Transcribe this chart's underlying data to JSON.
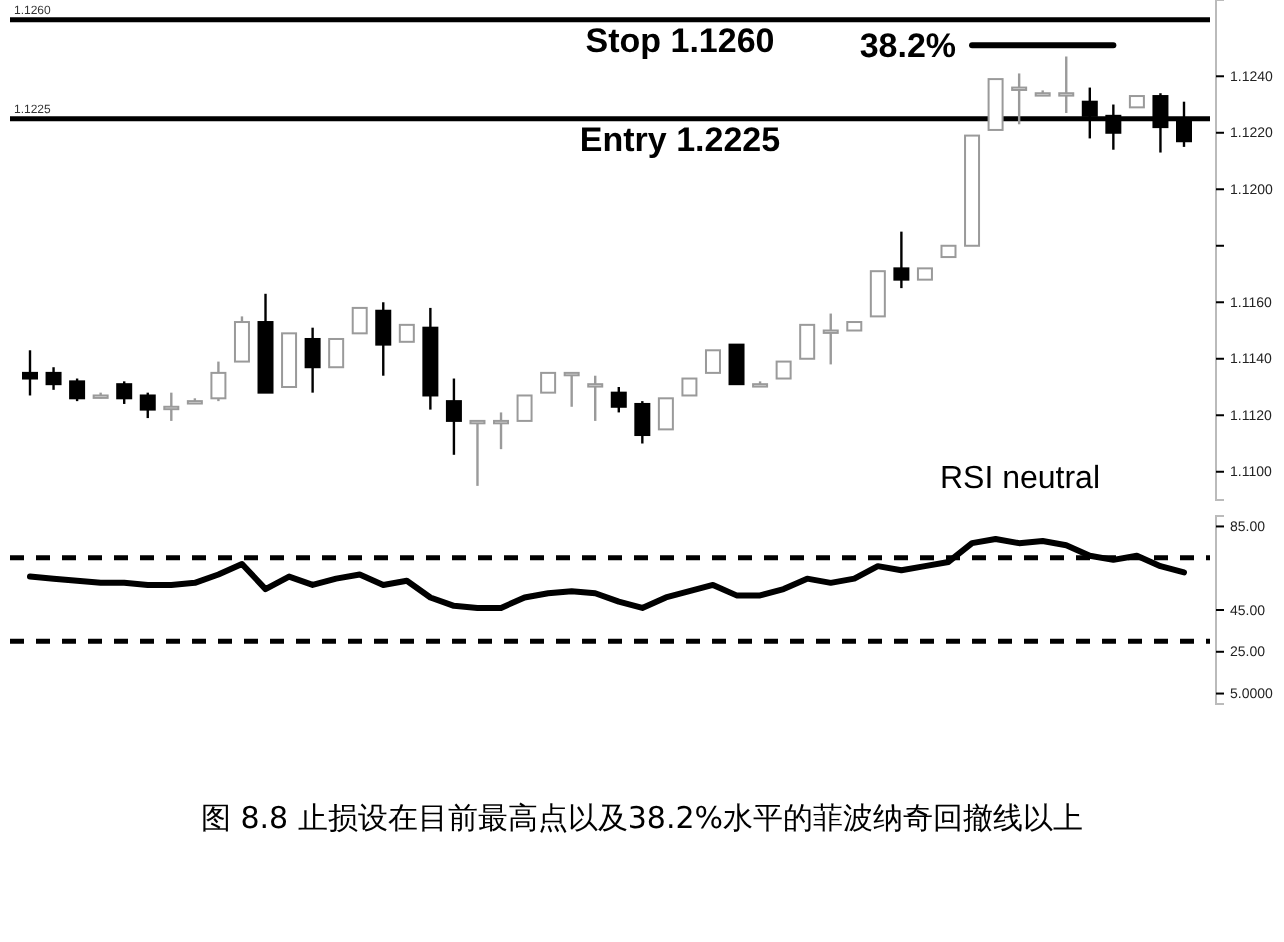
{
  "chart_data": [
    {
      "type": "candlestick",
      "categories": [
        null,
        null,
        null,
        null,
        null,
        null,
        null,
        null,
        null,
        null,
        null,
        null,
        null,
        null,
        null,
        null,
        null,
        null,
        null,
        null,
        null,
        null,
        null,
        null,
        null,
        null,
        null,
        null,
        null,
        null,
        null,
        null,
        null,
        null,
        null,
        null,
        null,
        null,
        null,
        null,
        null,
        null,
        null,
        null,
        null,
        null,
        null,
        null,
        null,
        null
      ],
      "ohlc": [
        [
          1.1135,
          1.1143,
          1.1127,
          1.1133
        ],
        [
          1.1135,
          1.1137,
          1.1129,
          1.1131
        ],
        [
          1.1132,
          1.1133,
          1.1125,
          1.1126
        ],
        [
          1.1127,
          1.1128,
          1.1126,
          1.1127
        ],
        [
          1.1131,
          1.1132,
          1.1124,
          1.1126
        ],
        [
          1.1127,
          1.1128,
          1.1119,
          1.1122
        ],
        [
          1.1123,
          1.1128,
          1.1118,
          1.1123
        ],
        [
          1.1125,
          1.1126,
          1.1124,
          1.1125
        ],
        [
          1.1126,
          1.1139,
          1.1125,
          1.1135
        ],
        [
          1.1139,
          1.1155,
          1.1139,
          1.1153
        ],
        [
          1.1153,
          1.1163,
          1.1128,
          1.1128
        ],
        [
          1.113,
          1.1149,
          1.113,
          1.1149
        ],
        [
          1.1147,
          1.1151,
          1.1128,
          1.1137
        ],
        [
          1.1137,
          1.1147,
          1.1137,
          1.1147
        ],
        [
          1.1149,
          1.1158,
          1.1149,
          1.1158
        ],
        [
          1.1157,
          1.116,
          1.1134,
          1.1145
        ],
        [
          1.1146,
          1.1152,
          1.1146,
          1.1152
        ],
        [
          1.1151,
          1.1158,
          1.1122,
          1.1127
        ],
        [
          1.1125,
          1.1133,
          1.1106,
          1.1118
        ],
        [
          1.1118,
          1.1118,
          1.1095,
          1.1118
        ],
        [
          1.1118,
          1.1121,
          1.1108,
          1.1118
        ],
        [
          1.1118,
          1.1127,
          1.1118,
          1.1127
        ],
        [
          1.1128,
          1.1135,
          1.1128,
          1.1135
        ],
        [
          1.1135,
          1.1135,
          1.1123,
          1.1135
        ],
        [
          1.1131,
          1.1134,
          1.1118,
          1.1131
        ],
        [
          1.1128,
          1.113,
          1.1121,
          1.1123
        ],
        [
          1.1124,
          1.1125,
          1.111,
          1.1113
        ],
        [
          1.1115,
          1.1126,
          1.1115,
          1.1126
        ],
        [
          1.1127,
          1.1133,
          1.1127,
          1.1133
        ],
        [
          1.1135,
          1.1143,
          1.1135,
          1.1143
        ],
        [
          1.1145,
          1.1145,
          1.1131,
          1.1131
        ],
        [
          1.1131,
          1.1132,
          1.113,
          1.1131
        ],
        [
          1.1133,
          1.1139,
          1.1133,
          1.1139
        ],
        [
          1.114,
          1.1152,
          1.114,
          1.1152
        ],
        [
          1.115,
          1.1156,
          1.1138,
          1.115
        ],
        [
          1.115,
          1.1153,
          1.115,
          1.1153
        ],
        [
          1.1155,
          1.1171,
          1.1155,
          1.1171
        ],
        [
          1.1172,
          1.1185,
          1.1165,
          1.1168
        ],
        [
          1.1168,
          1.1172,
          1.1168,
          1.1172
        ],
        [
          1.1176,
          1.118,
          1.1176,
          1.118
        ],
        [
          1.118,
          1.1219,
          1.118,
          1.1219
        ],
        [
          1.1221,
          1.1239,
          1.1221,
          1.1239
        ],
        [
          1.1236,
          1.1241,
          1.1223,
          1.1236
        ],
        [
          1.1234,
          1.1235,
          1.1233,
          1.1234
        ],
        [
          1.1234,
          1.1247,
          1.1227,
          1.1234
        ],
        [
          1.1231,
          1.1236,
          1.1218,
          1.1226
        ],
        [
          1.1226,
          1.123,
          1.1214,
          1.122
        ],
        [
          1.1229,
          1.1233,
          1.1229,
          1.1233
        ],
        [
          1.1233,
          1.1234,
          1.1213,
          1.1222
        ],
        [
          1.1224,
          1.1231,
          1.1215,
          1.1217
        ]
      ],
      "series": [
        {
          "type": "line",
          "name": "38.2%",
          "color": "#000000",
          "values": [
            null,
            null,
            null,
            null,
            null,
            null,
            null,
            null,
            null,
            null,
            null,
            null,
            null,
            null,
            null,
            null,
            null,
            null,
            null,
            null,
            null,
            null,
            null,
            null,
            null,
            null,
            null,
            null,
            null,
            null,
            null,
            null,
            null,
            null,
            null,
            null,
            null,
            null,
            null,
            null,
            1.1251,
            1.1251,
            1.1251,
            1.1251,
            1.1251,
            1.1251,
            1.1251,
            null,
            null,
            null
          ]
        }
      ],
      "ylim": [
        1.109,
        1.1267
      ],
      "yticks": [
        {
          "value": 1.11,
          "label": "1.1100"
        },
        {
          "value": 1.112,
          "label": "1.1120"
        },
        {
          "value": 1.114,
          "label": "1.1140"
        },
        {
          "value": 1.116,
          "label": "1.1160"
        },
        {
          "value": 1.118,
          "label": null
        },
        {
          "value": 1.12,
          "label": "1.1200"
        },
        {
          "value": 1.122,
          "label": "1.1220"
        },
        {
          "value": 1.124,
          "label": "1.1240"
        }
      ],
      "ref_lines": [
        {
          "axis": "y",
          "value": 1.126,
          "label": "Stop 1.1260"
        },
        {
          "axis": "y",
          "value": 1.1225,
          "label": "Entry 1.2225"
        }
      ],
      "annotations": [
        {
          "text": "1.1260",
          "y": 1.126
        },
        {
          "text": "1.1225",
          "y": 1.1225
        }
      ]
    },
    {
      "type": "line",
      "categories": [
        null,
        null,
        null,
        null,
        null,
        null,
        null,
        null,
        null,
        null,
        null,
        null,
        null,
        null,
        null,
        null,
        null,
        null,
        null,
        null,
        null,
        null,
        null,
        null,
        null,
        null,
        null,
        null,
        null,
        null,
        null,
        null,
        null,
        null,
        null,
        null,
        null,
        null,
        null,
        null,
        null,
        null,
        null,
        null,
        null,
        null,
        null,
        null,
        null,
        null
      ],
      "series": [
        {
          "color": "#000000",
          "values": [
            61,
            60,
            59,
            58,
            58,
            57,
            57,
            58,
            62,
            67,
            55,
            61,
            57,
            60,
            62,
            57,
            59,
            51,
            47,
            46,
            46,
            51,
            53,
            54,
            53,
            49,
            46,
            51,
            54,
            57,
            52,
            52,
            55,
            60,
            58,
            60,
            66,
            64,
            66,
            68,
            77,
            79,
            77,
            78,
            76,
            71,
            69,
            71,
            66,
            63
          ]
        }
      ],
      "ylim": [
        0,
        90
      ],
      "yticks": [
        {
          "value": 5,
          "label": "5.0000"
        },
        {
          "value": 25,
          "label": "25.00"
        },
        {
          "value": 45,
          "label": "45.00"
        },
        {
          "value": 85,
          "label": "85.00"
        }
      ],
      "ref_lines": [
        {
          "axis": "y",
          "value": 70,
          "line_style": "dashed"
        },
        {
          "axis": "y",
          "value": 30,
          "line_style": "dashed"
        }
      ],
      "annotations": [
        "RSI neutral",
        "图 8.8   止损设在目前最高点以及38.2%水平的菲波纳奇回撤线以上"
      ]
    }
  ]
}
